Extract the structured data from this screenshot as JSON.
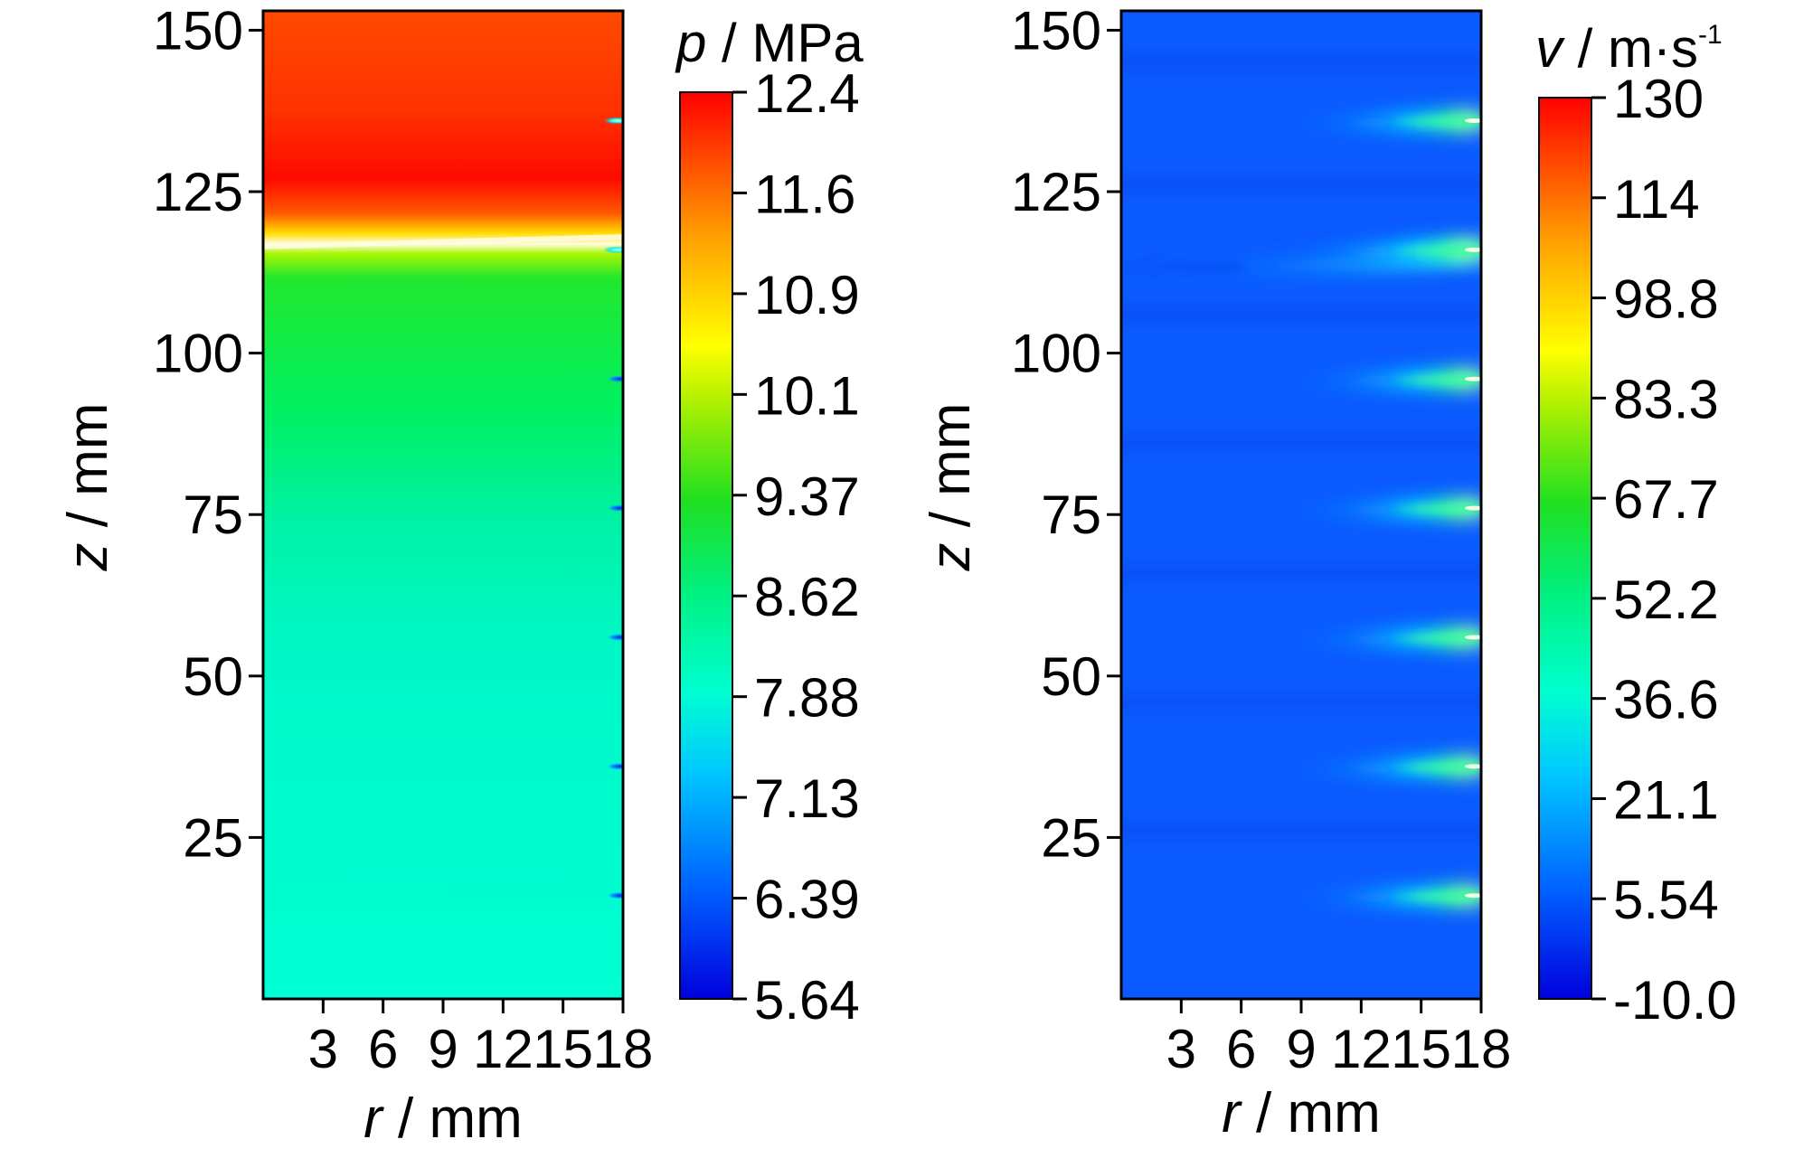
{
  "chart_data": [
    {
      "type": "heatmap",
      "title": "",
      "xlabel_var": "r",
      "xlabel_unit": " / mm",
      "ylabel_var": "z",
      "ylabel_unit": " / mm",
      "xlim": [
        0,
        18
      ],
      "ylim": [
        0,
        153
      ],
      "x_ticks": [
        "3",
        "6",
        "9",
        "12",
        "15",
        "18"
      ],
      "y_ticks": [
        "25",
        "50",
        "75",
        "100",
        "125",
        "150"
      ],
      "colorbar": {
        "var": "p",
        "unit": " / MPa",
        "range": [
          5.64,
          12.4
        ],
        "ticks": [
          "5.64",
          "6.39",
          "7.13",
          "7.88",
          "8.62",
          "9.37",
          "10.1",
          "10.9",
          "11.6",
          "12.4"
        ]
      },
      "field": {
        "description_values": "pressure field",
        "upper_region": {
          "z_range": [
            118,
            153
          ],
          "value_top": 12.0,
          "value_peak": 12.4
        },
        "interface_z": [
          116.5,
          118
        ],
        "lower_region": {
          "z_range": [
            0,
            116
          ],
          "value_upper": 8.6,
          "value_lower": 7.2
        },
        "wall_features_z": [
          136,
          116,
          96,
          76,
          56,
          36,
          16
        ]
      }
    },
    {
      "type": "heatmap",
      "title": "",
      "xlabel_var": "r",
      "xlabel_unit": " / mm",
      "ylabel_var": "z",
      "ylabel_unit": " / mm",
      "xlim": [
        0,
        18
      ],
      "ylim": [
        0,
        153
      ],
      "x_ticks": [
        "3",
        "6",
        "9",
        "12",
        "15",
        "18"
      ],
      "y_ticks": [
        "25",
        "50",
        "75",
        "100",
        "125",
        "150"
      ],
      "colorbar": {
        "var": "v",
        "unit": " / m·s",
        "unit_sup": "-1",
        "range": [
          -10.0,
          130
        ],
        "ticks": [
          "-10.0",
          "5.54",
          "21.1",
          "36.6",
          "52.2",
          "67.7",
          "83.3",
          "98.8",
          "114",
          "130"
        ]
      },
      "field": {
        "background_value": 3,
        "jet_z": [
          136,
          116,
          96,
          76,
          56,
          36,
          16
        ],
        "jet_peak_value": 60
      }
    }
  ]
}
